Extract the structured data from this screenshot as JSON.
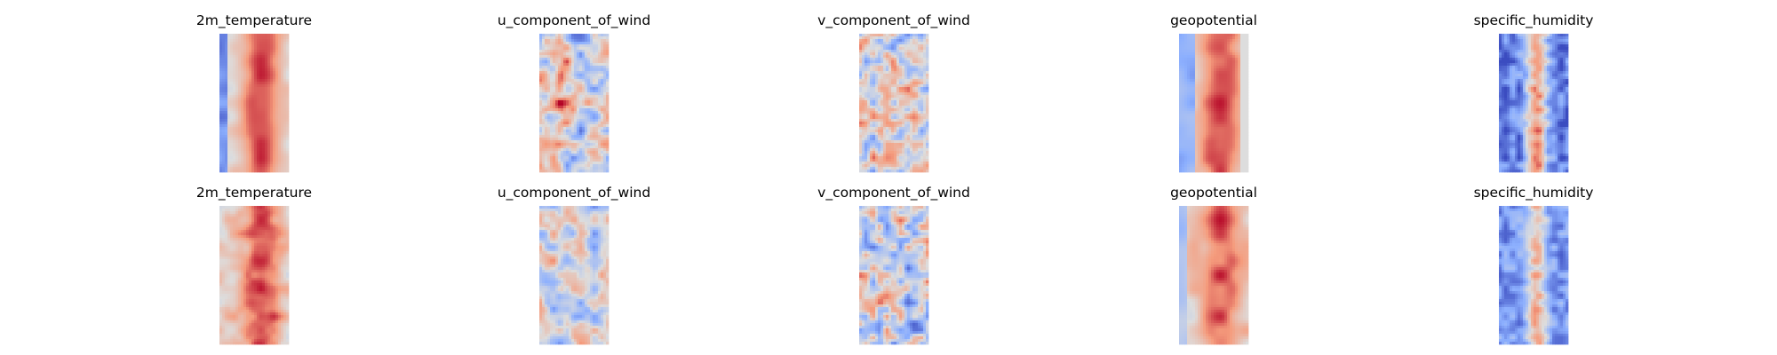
{
  "colormap": "coolwarm",
  "chart_data": {
    "type": "heatmap",
    "layout": {
      "rows": 2,
      "cols": 5
    },
    "axes": "off",
    "colors": {
      "low": "#3b4cc0",
      "mid": "#dddddd",
      "high": "#b40426"
    },
    "panels": [
      {
        "title": "2m_temperature",
        "row": 0,
        "col": 0,
        "pattern": "temp_sharp",
        "seed": 11
      },
      {
        "title": "u_component_of_wind",
        "row": 0,
        "col": 1,
        "pattern": "uwind_sharp",
        "seed": 12
      },
      {
        "title": "v_component_of_wind",
        "row": 0,
        "col": 2,
        "pattern": "vwind_sharp",
        "seed": 13
      },
      {
        "title": "geopotential",
        "row": 0,
        "col": 3,
        "pattern": "geo_sharp",
        "seed": 14
      },
      {
        "title": "specific_humidity",
        "row": 0,
        "col": 4,
        "pattern": "hum_sharp",
        "seed": 15
      },
      {
        "title": "2m_temperature",
        "row": 1,
        "col": 0,
        "pattern": "temp_smooth",
        "seed": 21
      },
      {
        "title": "u_component_of_wind",
        "row": 1,
        "col": 1,
        "pattern": "uwind_smooth",
        "seed": 22
      },
      {
        "title": "v_component_of_wind",
        "row": 1,
        "col": 2,
        "pattern": "vwind_smooth",
        "seed": 23
      },
      {
        "title": "geopotential",
        "row": 1,
        "col": 3,
        "pattern": "geo_smooth",
        "seed": 24
      },
      {
        "title": "specific_humidity",
        "row": 1,
        "col": 4,
        "pattern": "hum_smooth",
        "seed": 25
      }
    ]
  }
}
